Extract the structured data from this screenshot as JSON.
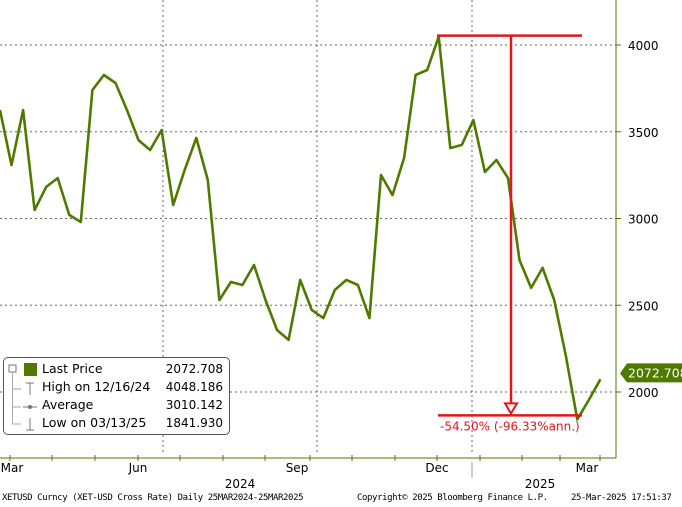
{
  "chart_data": {
    "type": "line",
    "title": "",
    "series": [
      {
        "name": "Last Price",
        "color": "#4f7a00",
        "x": [
          "2024-03-25",
          "2024-04-01",
          "2024-04-08",
          "2024-04-15",
          "2024-04-22",
          "2024-04-29",
          "2024-05-06",
          "2024-05-13",
          "2024-05-20",
          "2024-05-27",
          "2024-06-03",
          "2024-06-10",
          "2024-06-17",
          "2024-06-24",
          "2024-07-01",
          "2024-07-08",
          "2024-07-15",
          "2024-07-22",
          "2024-07-29",
          "2024-08-05",
          "2024-08-12",
          "2024-08-19",
          "2024-08-26",
          "2024-09-02",
          "2024-09-09",
          "2024-09-16",
          "2024-09-23",
          "2024-09-30",
          "2024-10-07",
          "2024-10-14",
          "2024-10-21",
          "2024-10-28",
          "2024-11-04",
          "2024-11-11",
          "2024-11-18",
          "2024-11-25",
          "2024-12-02",
          "2024-12-09",
          "2024-12-16",
          "2024-12-23",
          "2024-12-30",
          "2025-01-06",
          "2025-01-13",
          "2025-01-20",
          "2025-01-27",
          "2025-02-03",
          "2025-02-10",
          "2025-02-17",
          "2025-02-24",
          "2025-03-03",
          "2025-03-10",
          "2025-03-17",
          "2025-03-24"
        ],
        "values": [
          3625,
          3308,
          3625,
          3049,
          3182,
          3233,
          3020,
          2980,
          3740,
          3827,
          3781,
          3625,
          3452,
          3395,
          3510,
          3078,
          3280,
          3464,
          3222,
          2530,
          2634,
          2617,
          2732,
          2530,
          2357,
          2300,
          2646,
          2473,
          2426,
          2588,
          2646,
          2617,
          2426,
          3251,
          3135,
          3349,
          3827,
          3856,
          4048,
          3406,
          3424,
          3568,
          3268,
          3337,
          3233,
          2761,
          2600,
          2715,
          2530,
          2213,
          1842,
          1954,
          2073
        ]
      }
    ],
    "y_axis": {
      "position": "right",
      "ylim": [
        1700,
        4250
      ],
      "ticks": [
        2000,
        2500,
        3000,
        3500,
        4000
      ]
    },
    "x_axis": {
      "xlim": [
        "2024-03-25",
        "2025-03-25"
      ],
      "month_labels": [
        "Mar",
        "Jun",
        "Sep",
        "Dec",
        "Mar"
      ],
      "year_labels": [
        "2024",
        "2025"
      ]
    },
    "grid": true,
    "last_price_tag": "2072.708",
    "annotation": {
      "label": "-54.50% (-96.33%ann.)",
      "from_value": 4048.186,
      "to_value": 1841.93,
      "color": "#e3161b"
    },
    "legend": {
      "placement": "bottom-left",
      "items": [
        {
          "label": "Last Price",
          "value": "2072.708"
        },
        {
          "label": "High on 12/16/24",
          "value": "4048.186"
        },
        {
          "label": "Average",
          "value": "3010.142"
        },
        {
          "label": "Low on 03/13/25",
          "value": "1841.930"
        }
      ]
    }
  },
  "footer": {
    "security": "XETUSD Curncy (XET-USD Cross Rate)  Daily 25MAR2024-25MAR2025",
    "copyright": "Copyright© 2025 Bloomberg Finance L.P.",
    "timestamp": "25-Mar-2025 17:51:37"
  }
}
